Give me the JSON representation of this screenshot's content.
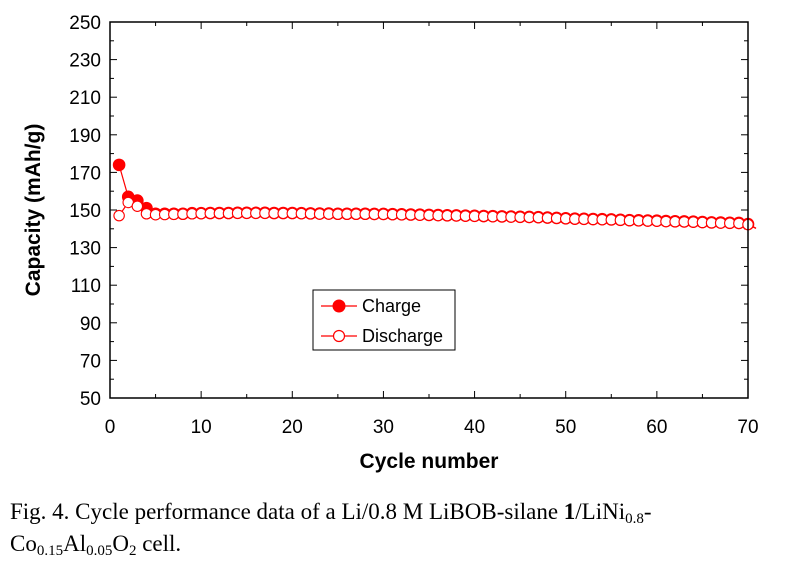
{
  "chart_data": {
    "type": "line",
    "xlabel": "Cycle number",
    "ylabel": "Capacity (mAh/g)",
    "xlim": [
      0,
      70
    ],
    "ylim": [
      50,
      250
    ],
    "xticks": [
      "0",
      "10",
      "20",
      "30",
      "40",
      "50",
      "60",
      "70"
    ],
    "yticks": [
      "50",
      "70",
      "90",
      "110",
      "130",
      "150",
      "170",
      "190",
      "210",
      "230",
      "250"
    ],
    "legend": {
      "placement": "center-left",
      "entries": [
        "Charge",
        "Discharge"
      ]
    },
    "colors": {
      "series": "#ff0000",
      "frame": "#000000"
    },
    "series": [
      {
        "name": "Charge",
        "marker": "filled-circle",
        "x": [
          1,
          2,
          3,
          4,
          5,
          6,
          7,
          8,
          9,
          10,
          11,
          12,
          13,
          14,
          15,
          16,
          17,
          18,
          19,
          20,
          21,
          22,
          23,
          24,
          25,
          26,
          27,
          28,
          29,
          30,
          31,
          32,
          33,
          34,
          35,
          36,
          37,
          38,
          39,
          40,
          41,
          42,
          43,
          44,
          45,
          46,
          47,
          48,
          49,
          50,
          51,
          52,
          53,
          54,
          55,
          56,
          57,
          58,
          59,
          60,
          61,
          62,
          63,
          64,
          65,
          66,
          67,
          68,
          69,
          70
        ],
        "values": [
          174,
          157,
          155,
          151,
          148,
          148,
          148,
          148,
          148.3,
          148.3,
          148.4,
          148.4,
          148.4,
          148.5,
          148.5,
          148.5,
          148.5,
          148.4,
          148.4,
          148.4,
          148.3,
          148.2,
          148.1,
          148.1,
          148.0,
          148.0,
          148.0,
          148.0,
          147.9,
          147.9,
          147.8,
          147.7,
          147.6,
          147.5,
          147.4,
          147.3,
          147.2,
          147.1,
          147.0,
          146.9,
          146.8,
          146.7,
          146.6,
          146.5,
          146.4,
          146.3,
          146.2,
          146.0,
          145.8,
          145.6,
          145.4,
          145.3,
          145.2,
          145.1,
          145.0,
          144.8,
          144.6,
          144.5,
          144.4,
          144.3,
          144.1,
          144.0,
          143.9,
          143.8,
          143.6,
          143.4,
          143.3,
          143.2,
          143.1,
          142.5
        ]
      },
      {
        "name": "Discharge",
        "marker": "open-circle",
        "x": [
          1,
          2,
          3,
          4,
          5,
          6,
          7,
          8,
          9,
          10,
          11,
          12,
          13,
          14,
          15,
          16,
          17,
          18,
          19,
          20,
          21,
          22,
          23,
          24,
          25,
          26,
          27,
          28,
          29,
          30,
          31,
          32,
          33,
          34,
          35,
          36,
          37,
          38,
          39,
          40,
          41,
          42,
          43,
          44,
          45,
          46,
          47,
          48,
          49,
          50,
          51,
          52,
          53,
          54,
          55,
          56,
          57,
          58,
          59,
          60,
          61,
          62,
          63,
          64,
          65,
          66,
          67,
          68,
          69,
          70
        ],
        "values": [
          147,
          154,
          152,
          148,
          147.5,
          147.6,
          147.7,
          147.8,
          148.0,
          148.1,
          148.2,
          148.2,
          148.2,
          148.3,
          148.3,
          148.3,
          148.3,
          148.2,
          148.2,
          148.2,
          148.1,
          148.0,
          147.9,
          147.9,
          147.8,
          147.8,
          147.8,
          147.8,
          147.7,
          147.7,
          147.6,
          147.5,
          147.4,
          147.3,
          147.2,
          147.1,
          147.0,
          146.9,
          146.8,
          146.7,
          146.6,
          146.5,
          146.4,
          146.3,
          146.2,
          146.1,
          146.0,
          145.8,
          145.6,
          145.4,
          145.2,
          145.1,
          145.0,
          144.9,
          144.8,
          144.6,
          144.4,
          144.3,
          144.2,
          144.1,
          143.9,
          143.8,
          143.7,
          143.6,
          143.4,
          143.2,
          143.1,
          143.0,
          142.9,
          142.3
        ]
      }
    ]
  },
  "caption": {
    "p1": "Fig. 4. Cycle performance data of a Li/0.8 M LiBOB-silane ",
    "bold": "1",
    "p2": "/LiNi",
    "s1": "0.8",
    "p3": "-",
    "p4": "Co",
    "s2": "0.15",
    "p5": "Al",
    "s3": "0.05",
    "p6": "O",
    "s4": "2",
    "p7": " cell."
  }
}
